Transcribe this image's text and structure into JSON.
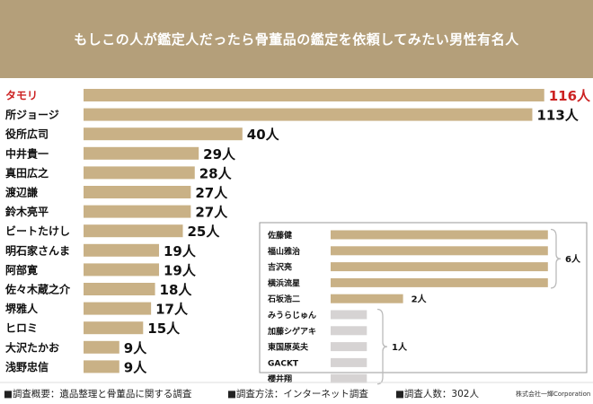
{
  "header": {
    "title": "もしこの人が鑑定人だったら骨董品の鑑定を依頼してみたい男性有名人"
  },
  "colors": {
    "header_bg": "#b49f7a",
    "bar": "#c9b186",
    "bar_light": "#d6d3d3",
    "highlight": "#cc2222",
    "inset_border": "#999999",
    "brace": "#bbbbbb"
  },
  "chart_data": {
    "type": "bar",
    "orientation": "horizontal",
    "title": "もしこの人が鑑定人だったら骨董品の鑑定を依頼してみたい男性有名人",
    "unit": "人",
    "categories": [
      "タモリ",
      "所ジョージ",
      "役所広司",
      "中井貴一",
      "真田広之",
      "渡辺謙",
      "鈴木亮平",
      "ビートたけし",
      "明石家さんま",
      "阿部寛",
      "佐々木蔵之介",
      "堺雅人",
      "ヒロミ",
      "大沢たかお",
      "浅野忠信"
    ],
    "values": [
      116,
      113,
      40,
      29,
      28,
      27,
      27,
      25,
      19,
      19,
      18,
      17,
      15,
      9,
      9
    ],
    "value_labels": [
      "116人",
      "113人",
      "40人",
      "29人",
      "28人",
      "27人",
      "27人",
      "25人",
      "19人",
      "19人",
      "18人",
      "17人",
      "15人",
      "9人",
      "9人"
    ],
    "highlight_index": 0,
    "inset": {
      "groups": [
        {
          "names": [
            "佐藤健",
            "福山雅治",
            "吉沢亮",
            "横浜流星"
          ],
          "value": 6,
          "label": "6人"
        },
        {
          "names": [
            "石坂浩二"
          ],
          "value": 2,
          "label": "2人"
        },
        {
          "names": [
            "みうらじゅん",
            "加藤シゲアキ",
            "東国原英夫",
            "GACKT",
            "櫻井翔"
          ],
          "value": 1,
          "label": "1人"
        }
      ]
    }
  },
  "footer": {
    "note1": "■調査概要：遺品整理と骨董品に関する調査",
    "note2": "■調査方法：インターネット調査",
    "note3": "■調査人数：302人",
    "credit": "株式会社一輝Corporation"
  }
}
